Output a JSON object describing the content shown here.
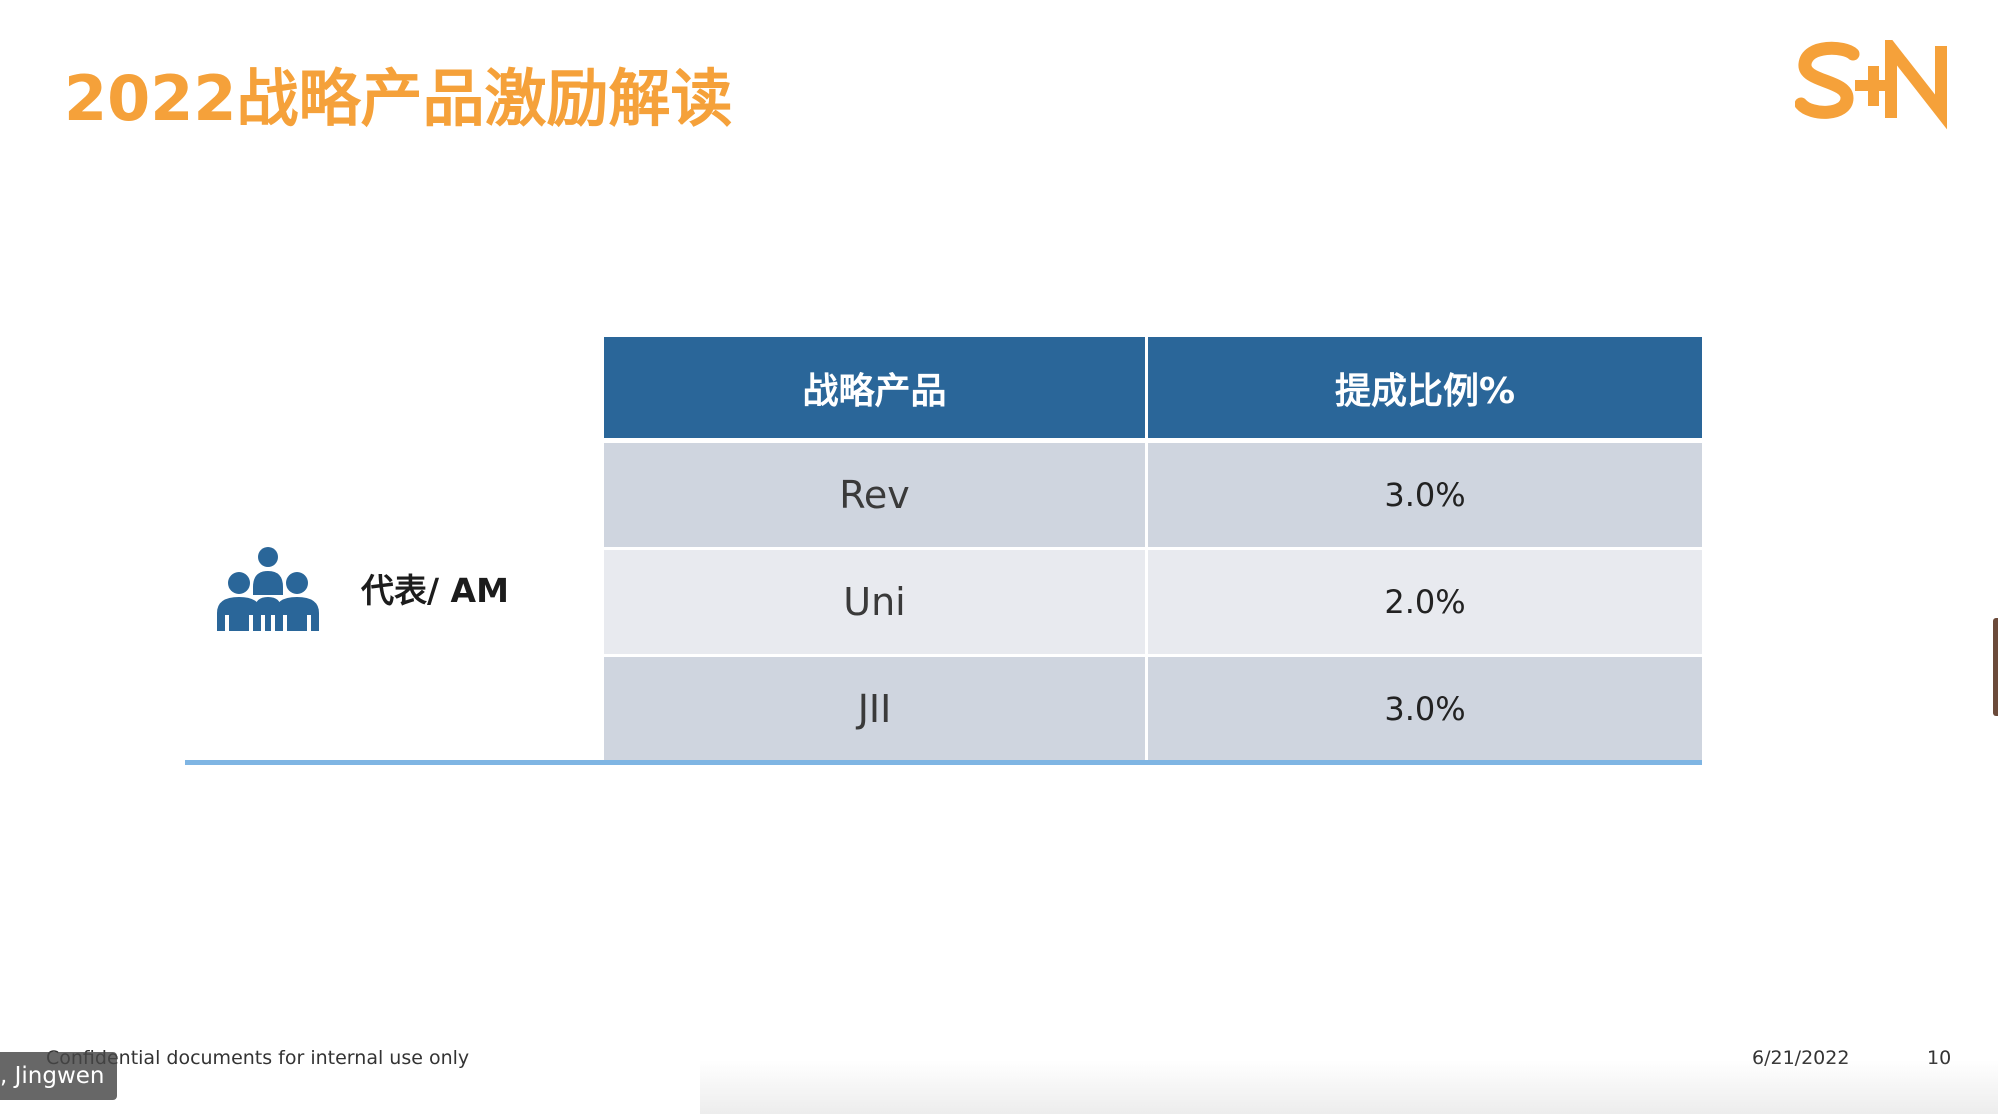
{
  "slide": {
    "title": "2022战略产品激励解读",
    "logo": {
      "icon": "company-logo-icon",
      "color": "#f5a13a"
    },
    "role": {
      "icon": "people-group-icon",
      "label": "代表/ AM"
    },
    "table": {
      "headers": [
        "战略产品",
        "提成比例%"
      ],
      "rows": [
        {
          "product": "Rev",
          "rate": "3.0%"
        },
        {
          "product": "Uni",
          "rate": "2.0%"
        },
        {
          "product": "JII",
          "rate": "3.0%"
        }
      ],
      "header_color": "#2a6699"
    },
    "footer": {
      "confidential": "Confidential documents for internal use only",
      "date": "6/21/2022",
      "page": "10"
    }
  },
  "overlay": {
    "participant_name": ", Jingwen"
  },
  "colors": {
    "accent": "#f5a13a",
    "header_blue": "#2a6699",
    "line_blue": "#7fb5e3",
    "row_dark": "#cfd5df",
    "row_light": "#e8eaef"
  }
}
